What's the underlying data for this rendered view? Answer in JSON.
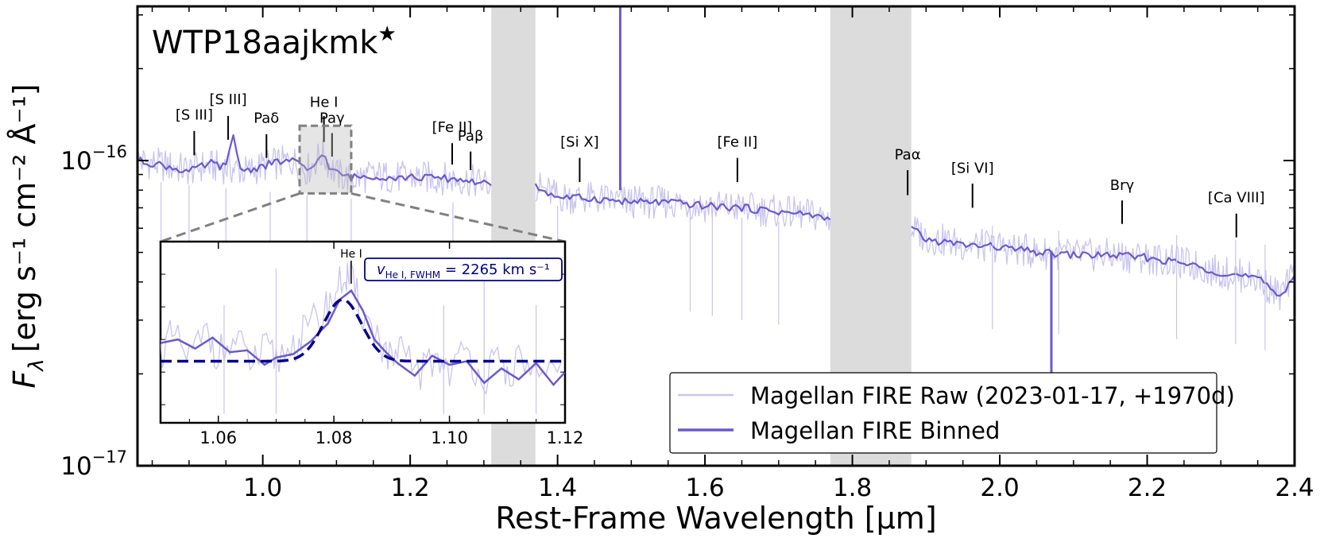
{
  "chart_data": {
    "type": "line",
    "object_name": "WTP18aajkmk",
    "object_marker": "★",
    "xlabel": "Rest-Frame Wavelength [μm]",
    "ylabel_prefix": "F",
    "ylabel_sub": "λ",
    "ylabel_units": "[erg s⁻¹ cm⁻² Å⁻¹]",
    "xlim": [
      0.83,
      2.4
    ],
    "ylim": [
      1e-17,
      3.2e-16
    ],
    "yscale": "log",
    "x_ticks": [
      1.0,
      1.2,
      1.4,
      1.6,
      1.8,
      2.0,
      2.2,
      2.4
    ],
    "x_tick_labels": [
      "1.0",
      "1.2",
      "1.4",
      "1.6",
      "1.8",
      "2.0",
      "2.2",
      "2.4"
    ],
    "y_ticks": [
      {
        "value": 1e-17,
        "base": "10",
        "exp": "−17"
      },
      {
        "value": 1e-16,
        "base": "10",
        "exp": "−16"
      }
    ],
    "masked_regions": [
      [
        1.31,
        1.37
      ],
      [
        1.77,
        1.88
      ]
    ],
    "series": [
      {
        "name": "Magellan FIRE Raw (2023-01-17, +1970d)",
        "color": "#c9c4ee",
        "style": "raw",
        "segments": [
          {
            "x": [
              0.83,
              0.86,
              0.9,
              0.92,
              0.95,
              0.98,
              1.0,
              1.02,
              1.04,
              1.06,
              1.08,
              1.1,
              1.12,
              1.15,
              1.18,
              1.22,
              1.26,
              1.28,
              1.3,
              1.31
            ],
            "y": [
              1e-16,
              9.7e-17,
              9.3e-17,
              9.6e-17,
              9.5e-17,
              9.2e-17,
              9.6e-17,
              9.8e-17,
              1e-16,
              9.3e-17,
              1.05e-16,
              9e-17,
              8.7e-17,
              8.9e-17,
              8.8e-17,
              8.8e-17,
              8.7e-17,
              8.6e-17,
              8.4e-17,
              8.3e-17
            ]
          },
          {
            "x": [
              1.37,
              1.4,
              1.45,
              1.5,
              1.55,
              1.6,
              1.65,
              1.7,
              1.75,
              1.77
            ],
            "y": [
              8.3e-17,
              7.6e-17,
              7.5e-17,
              7.3e-17,
              7.3e-17,
              7.1e-17,
              7e-17,
              6.8e-17,
              6.6e-17,
              6.4e-17
            ]
          },
          {
            "x": [
              1.88,
              1.9,
              1.95,
              2.0,
              2.05,
              2.1,
              2.15,
              2.2,
              2.25,
              2.3,
              2.35,
              2.38,
              2.4
            ],
            "y": [
              6e-17,
              5.6e-17,
              5.3e-17,
              5.2e-17,
              5e-17,
              4.9e-17,
              4.9e-17,
              4.8e-17,
              4.6e-17,
              4.3e-17,
              4.1e-17,
              3.6e-17,
              4.2e-17
            ]
          }
        ]
      },
      {
        "name": "Magellan FIRE Binned",
        "color": "#6a5acd",
        "style": "binned",
        "segments": [
          {
            "x": [
              0.83,
              0.86,
              0.9,
              0.93,
              0.95,
              0.96,
              0.97,
              0.98,
              1.0,
              1.02,
              1.04,
              1.06,
              1.07,
              1.08,
              1.09,
              1.1,
              1.12,
              1.15,
              1.18,
              1.22,
              1.26,
              1.28,
              1.3,
              1.31
            ],
            "y": [
              1e-16,
              9.7e-17,
              9.2e-17,
              9.8e-17,
              9.5e-17,
              1.2e-16,
              9.4e-17,
              9.3e-17,
              9.6e-17,
              9.9e-17,
              1e-16,
              9.3e-17,
              9.6e-17,
              1.07e-16,
              9.5e-17,
              9.1e-17,
              8.8e-17,
              8.9e-17,
              8.8e-17,
              8.8e-17,
              8.7e-17,
              8.6e-17,
              8.4e-17,
              8.3e-17
            ]
          },
          {
            "x": [
              1.37,
              1.4,
              1.45,
              1.5,
              1.55,
              1.6,
              1.65,
              1.7,
              1.75,
              1.77
            ],
            "y": [
              8.2e-17,
              7.6e-17,
              7.5e-17,
              7.3e-17,
              7.3e-17,
              7.1e-17,
              7e-17,
              6.8e-17,
              6.6e-17,
              6.4e-17
            ]
          },
          {
            "x": [
              1.88,
              1.9,
              1.95,
              2.0,
              2.05,
              2.1,
              2.15,
              2.2,
              2.25,
              2.3,
              2.35,
              2.38,
              2.4
            ],
            "y": [
              6e-17,
              5.5e-17,
              5.3e-17,
              5.2e-17,
              5e-17,
              4.9e-17,
              4.9e-17,
              4.8e-17,
              4.6e-17,
              4.3e-17,
              4.1e-17,
              3.6e-17,
              4.2e-17
            ]
          }
        ]
      }
    ],
    "spikes": [
      {
        "x": 1.485,
        "from": 8e-17,
        "to": 3.2e-16,
        "color": "#6a5acd"
      },
      {
        "x": 2.07,
        "from": 5e-17,
        "to": 1.8e-17,
        "color": "#6a5acd"
      }
    ],
    "line_labels": [
      {
        "text": "[S III]",
        "x": 0.907,
        "label_y": 1.36e-16,
        "tick_top": 1.25e-16,
        "tick_bottom": 1.04e-16
      },
      {
        "text": "[S III]",
        "x": 0.953,
        "label_y": 1.53e-16,
        "tick_top": 1.4e-16,
        "tick_bottom": 1.17e-16
      },
      {
        "text": "Paδ",
        "x": 1.005,
        "label_y": 1.33e-16,
        "tick_top": 1.22e-16,
        "tick_bottom": 1.02e-16
      },
      {
        "text": "He I",
        "x": 1.083,
        "label_y": 1.5e-16,
        "tick_top": 1.4e-16,
        "tick_bottom": 1.15e-16
      },
      {
        "text": "Paγ",
        "x": 1.094,
        "label_y": 1.33e-16,
        "tick_top": 1.23e-16,
        "tick_bottom": 1.03e-16
      },
      {
        "text": "[Fe II]",
        "x": 1.257,
        "label_y": 1.24e-16,
        "tick_top": 1.14e-16,
        "tick_bottom": 9.7e-17
      },
      {
        "text": "Paβ",
        "x": 1.282,
        "label_y": 1.16e-16,
        "tick_top": 1.07e-16,
        "tick_bottom": 9.3e-17
      },
      {
        "text": "[Si X]",
        "x": 1.43,
        "label_y": 1.11e-16,
        "tick_top": 1.02e-16,
        "tick_bottom": 8.5e-17
      },
      {
        "text": "[Fe II]",
        "x": 1.644,
        "label_y": 1.11e-16,
        "tick_top": 1.02e-16,
        "tick_bottom": 8.5e-17
      },
      {
        "text": "Paα",
        "x": 1.875,
        "label_y": 1.01e-16,
        "tick_top": 9.3e-17,
        "tick_bottom": 7.7e-17
      },
      {
        "text": "[Si VI]",
        "x": 1.963,
        "label_y": 9.1e-17,
        "tick_top": 8.4e-17,
        "tick_bottom": 7e-17
      },
      {
        "text": "Brγ",
        "x": 2.166,
        "label_y": 8e-17,
        "tick_top": 7.4e-17,
        "tick_bottom": 6.2e-17
      },
      {
        "text": "[Ca VIII]",
        "x": 2.321,
        "label_y": 7.3e-17,
        "tick_top": 6.7e-17,
        "tick_bottom": 5.6e-17
      }
    ],
    "zoom_box": {
      "x": [
        1.05,
        1.12
      ],
      "y": [
        7.8e-17,
        1.3e-16
      ]
    },
    "legend_position": "lower-right",
    "inset": {
      "xlim": [
        1.05,
        1.12
      ],
      "ylim": [
        0,
        1
      ],
      "x_ticks": [
        1.06,
        1.08,
        1.1,
        1.12
      ],
      "x_tick_labels": [
        "1.06",
        "1.08",
        "1.10",
        "1.12"
      ],
      "line_label": "He I",
      "line_x": 1.083,
      "annotation_v": "v",
      "annotation_sub": "He I, FWHM",
      "annotation_rest": " = 2265 km s⁻¹",
      "raw": {
        "x": [
          1.05,
          1.052,
          1.055,
          1.058,
          1.06,
          1.063,
          1.066,
          1.068,
          1.07,
          1.073,
          1.075,
          1.078,
          1.08,
          1.082,
          1.083,
          1.085,
          1.088,
          1.09,
          1.092,
          1.095,
          1.098,
          1.1,
          1.103,
          1.106,
          1.108,
          1.11,
          1.113,
          1.116,
          1.12
        ],
        "y": [
          0.4,
          0.47,
          0.36,
          0.49,
          0.38,
          0.44,
          0.33,
          0.4,
          0.35,
          0.43,
          0.5,
          0.6,
          0.7,
          0.82,
          0.78,
          0.6,
          0.45,
          0.33,
          0.38,
          0.28,
          0.36,
          0.3,
          0.38,
          0.25,
          0.33,
          0.28,
          0.35,
          0.2,
          0.3
        ]
      },
      "binned": {
        "x": [
          1.05,
          1.053,
          1.056,
          1.059,
          1.062,
          1.065,
          1.068,
          1.07,
          1.073,
          1.076,
          1.079,
          1.081,
          1.083,
          1.085,
          1.087,
          1.089,
          1.091,
          1.094,
          1.097,
          1.1,
          1.103,
          1.106,
          1.109,
          1.112,
          1.115,
          1.118,
          1.12
        ],
        "y": [
          0.44,
          0.46,
          0.41,
          0.47,
          0.39,
          0.4,
          0.32,
          0.36,
          0.38,
          0.45,
          0.55,
          0.68,
          0.73,
          0.62,
          0.46,
          0.39,
          0.33,
          0.26,
          0.37,
          0.32,
          0.34,
          0.22,
          0.3,
          0.24,
          0.33,
          0.21,
          0.28
        ]
      },
      "fit": {
        "center": 1.0815,
        "sigma": 0.0033,
        "amplitude": 0.34,
        "baseline": 0.34
      }
    }
  }
}
